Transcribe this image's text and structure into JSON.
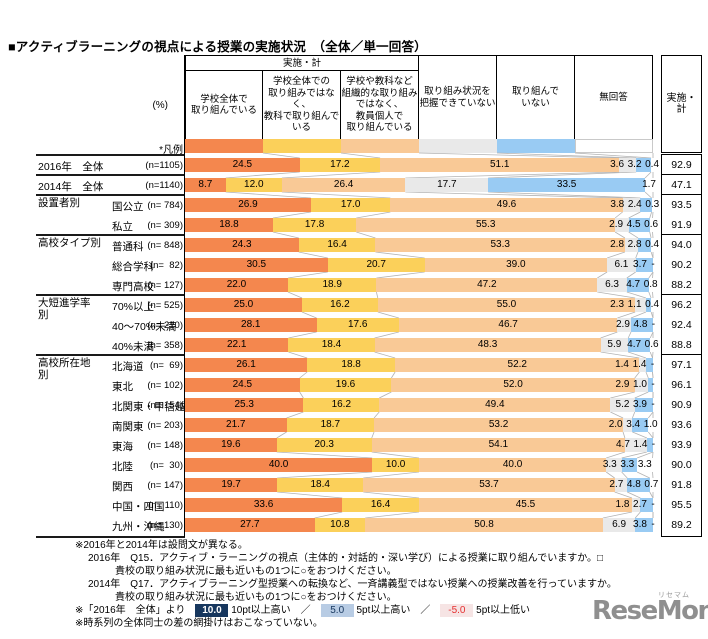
{
  "title": "■アクティブラーニングの視点による授業の実施状況　（全体／単一回答）",
  "percent_label": "(%)",
  "legend_row_label": "*凡例",
  "colors": {
    "seg1": "#F4874E",
    "seg2": "#FBD05A",
    "seg3": "#F9C996",
    "seg4": "#E9E9E9",
    "seg5": "#99CBF3",
    "seg6": "#FFFFFF",
    "connector": "#B3B3B3",
    "border": "#000000",
    "marker_high10_bg": "#17375E",
    "marker_high10_text": "#FFFFFF",
    "marker_high5_bg": "#B8CCE4",
    "marker_high5_text": "#17375E",
    "marker_low5_bg": "#F6E4E4",
    "marker_low5_text": "#E53030"
  },
  "header": {
    "group_label": "実施・計",
    "total_label": "実施・計",
    "columns": [
      {
        "label": "学校全体で\n取り組んでいる"
      },
      {
        "label": "学校全体での\n取り組みではなく、\n教科で取り組んで\nいる"
      },
      {
        "label": "学校や教科など\n組織的な取り組み\nではなく、\n教員個人で\n取り組んでいる"
      },
      {
        "label": "取り組み状況を\n把握できていない"
      },
      {
        "label": "取り組んで\nいない"
      },
      {
        "label": "無回答"
      }
    ]
  },
  "chart_data": {
    "type": "bar",
    "stacked": true,
    "orientation": "horizontal",
    "unit": "%",
    "xlim": [
      0,
      100
    ],
    "series_names": [
      "学校全体で取り組んでいる",
      "学校全体での取り組みではなく、教科で取り組んでいる",
      "学校や教科など組織的な取り組みではなく、教員個人で取り組んでいる",
      "取り組み状況を把握できていない",
      "取り組んでいない",
      "無回答"
    ],
    "groups": [
      {
        "label": "",
        "rows": [
          {
            "label": "2016年　全体",
            "n": "(n=1105)",
            "values": [
              24.5,
              17.2,
              51.1,
              3.6,
              3.2,
              0.4
            ],
            "labels": [
              "24.5",
              "17.2",
              "51.1",
              "3.6",
              "3.2",
              "0.4"
            ],
            "total": "92.9"
          }
        ]
      },
      {
        "label": "",
        "rows": [
          {
            "label": "2014年　全体",
            "n": "(n=1140)",
            "values": [
              8.7,
              12.0,
              26.4,
              17.7,
              33.5,
              1.7
            ],
            "labels": [
              "8.7",
              "12.0",
              "26.4",
              "17.7",
              "33.5",
              "1.7"
            ],
            "total": "47.1"
          }
        ]
      },
      {
        "label": "設置者別",
        "rows": [
          {
            "label": "国公立",
            "n": "(n= 784)",
            "values": [
              26.9,
              17.0,
              49.6,
              3.8,
              2.4,
              0.3
            ],
            "labels": [
              "26.9",
              "17.0",
              "49.6",
              "3.8",
              "2.4",
              "0.3"
            ],
            "total": "93.5"
          },
          {
            "label": "私立",
            "n": "(n= 309)",
            "values": [
              18.8,
              17.8,
              55.3,
              2.9,
              4.5,
              0.6
            ],
            "labels": [
              "18.8",
              "17.8",
              "55.3",
              "2.9",
              "4.5",
              "0.6"
            ],
            "total": "91.9"
          }
        ]
      },
      {
        "label": "高校タイプ別",
        "rows": [
          {
            "label": "普通科",
            "n": "(n= 848)",
            "values": [
              24.3,
              16.4,
              53.3,
              2.8,
              2.8,
              0.4
            ],
            "labels": [
              "24.3",
              "16.4",
              "53.3",
              "2.8",
              "2.8",
              "0.4"
            ],
            "total": "94.0"
          },
          {
            "label": "総合学科",
            "n": "(n=  82)",
            "values": [
              30.5,
              20.7,
              39.0,
              6.1,
              3.7,
              0
            ],
            "labels": [
              "30.5",
              "20.7",
              "39.0",
              "6.1",
              "3.7",
              "-"
            ],
            "total": "90.2"
          },
          {
            "label": "専門高校",
            "n": "(n= 127)",
            "values": [
              22.0,
              18.9,
              47.2,
              6.3,
              4.7,
              0.8
            ],
            "labels": [
              "22.0",
              "18.9",
              "47.2",
              "6.3",
              "4.7",
              "0.8"
            ],
            "total": "88.2"
          }
        ]
      },
      {
        "label": "大短進学率\n別",
        "rows": [
          {
            "label": "70%以上",
            "n": "(n= 525)",
            "values": [
              25.0,
              16.2,
              55.0,
              2.3,
              1.1,
              0.4
            ],
            "labels": [
              "25.0",
              "16.2",
              "55.0",
              "2.3",
              "1.1",
              "0.4"
            ],
            "total": "96.2"
          },
          {
            "label": "40～70%未満",
            "n": "(n= 210)",
            "values": [
              28.1,
              17.6,
              46.7,
              2.9,
              4.8,
              0
            ],
            "labels": [
              "28.1",
              "17.6",
              "46.7",
              "2.9",
              "4.8",
              "-"
            ],
            "total": "92.4"
          },
          {
            "label": "40%未満",
            "n": "(n= 358)",
            "values": [
              22.1,
              18.4,
              48.3,
              5.9,
              4.7,
              0.6
            ],
            "labels": [
              "22.1",
              "18.4",
              "48.3",
              "5.9",
              "4.7",
              "0.6"
            ],
            "total": "88.8"
          }
        ]
      },
      {
        "label": "高校所在地\n別",
        "rows": [
          {
            "label": "北海道",
            "n": "(n=  69)",
            "values": [
              26.1,
              18.8,
              52.2,
              1.4,
              1.4,
              0
            ],
            "labels": [
              "26.1",
              "18.8",
              "52.2",
              "1.4",
              "1.4",
              "-"
            ],
            "total": "97.1"
          },
          {
            "label": "東北",
            "n": "(n= 102)",
            "values": [
              24.5,
              19.6,
              52.0,
              2.9,
              1.0,
              0
            ],
            "labels": [
              "24.5",
              "19.6",
              "52.0",
              "2.9",
              "1.0",
              "-"
            ],
            "total": "96.1"
          },
          {
            "label": "北関東・甲信越",
            "n": "(n= 154)",
            "values": [
              25.3,
              16.2,
              49.4,
              5.2,
              3.9,
              0
            ],
            "labels": [
              "25.3",
              "16.2",
              "49.4",
              "5.2",
              "3.9",
              "-"
            ],
            "total": "90.9"
          },
          {
            "label": "南関東",
            "n": "(n= 203)",
            "values": [
              21.7,
              18.7,
              53.2,
              2.0,
              3.4,
              1.0
            ],
            "labels": [
              "21.7",
              "18.7",
              "53.2",
              "2.0",
              "3.4",
              "1.0"
            ],
            "total": "93.6"
          },
          {
            "label": "東海",
            "n": "(n= 148)",
            "values": [
              19.6,
              20.3,
              54.1,
              4.7,
              1.4,
              0
            ],
            "labels": [
              "19.6",
              "20.3",
              "54.1",
              "4.7",
              "1.4",
              "-"
            ],
            "total": "93.9"
          },
          {
            "label": "北陸",
            "n": "(n=  30)",
            "values": [
              40.0,
              10.0,
              40.0,
              3.3,
              3.3,
              3.3
            ],
            "labels": [
              "40.0",
              "10.0",
              "40.0",
              "3.3",
              "3.3",
              "3.3"
            ],
            "total": "90.0"
          },
          {
            "label": "関西",
            "n": "(n= 147)",
            "values": [
              19.7,
              18.4,
              53.7,
              2.7,
              4.8,
              0.7
            ],
            "labels": [
              "19.7",
              "18.4",
              "53.7",
              "2.7",
              "4.8",
              "0.7"
            ],
            "total": "91.8"
          },
          {
            "label": "中国・四国",
            "n": "(n= 110)",
            "values": [
              33.6,
              16.4,
              45.5,
              1.8,
              2.7,
              0
            ],
            "labels": [
              "33.6",
              "16.4",
              "45.5",
              "1.8",
              "2.7",
              "-"
            ],
            "total": "95.5"
          },
          {
            "label": "九州・沖縄",
            "n": "(n= 130)",
            "values": [
              27.7,
              10.8,
              50.8,
              6.9,
              3.8,
              0
            ],
            "labels": [
              "27.7",
              "10.8",
              "50.8",
              "6.9",
              "3.8",
              "-"
            ],
            "total": "89.2"
          }
        ]
      }
    ]
  },
  "footnotes": [
    {
      "indent": 0,
      "text": "※2016年と2014年は設問文が異なる。"
    },
    {
      "indent": 1,
      "text": "2016年　Q15．アクティブ・ラーニングの視点（主体的・対話的・深い学び）による授業に取り組んでいますか。□"
    },
    {
      "indent": 2,
      "text": "貴校の取り組み状況に最も近いもの1つに○をおつけください。"
    },
    {
      "indent": 1,
      "text": "2014年　Q17．アクティブラーニング型授業への転換など、一斉講義型ではない授業への授業改善を行っていますか。"
    },
    {
      "indent": 2,
      "text": "貴校の取り組み状況に最も近いもの1つに○をおつけください。"
    }
  ],
  "shading_note": {
    "prefix": "※「2016年　全体」より",
    "marker_high10": "10.0",
    "label_high10": "10pt以上高い",
    "separator": "／",
    "marker_high5": "5.0",
    "label_high5": "5pt以上高い",
    "marker_low5": "-5.0",
    "label_low5": "5pt以上低い"
  },
  "final_note": "※時系列の全体同士の差の網掛けはおこなっていない。",
  "logo": {
    "text": "ReseMom.",
    "kana": "リセマム"
  }
}
